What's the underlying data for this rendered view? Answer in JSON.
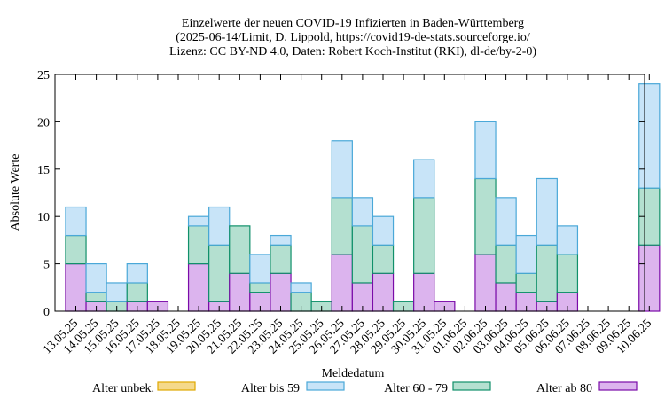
{
  "chart_data": {
    "type": "bar",
    "stacked": true,
    "title": [
      "Einzelwerte der neuen COVID-19 Infizierten in Baden-Württemberg",
      "(2025-06-14/Limit, D. Lippold, https://covid19-de-stats.sourceforge.io/",
      "Lizenz: CC BY-ND 4.0, Daten: Robert Koch-Institut (RKI), dl-de/by-2-0)"
    ],
    "xlabel": "Meldedatum",
    "ylabel": "Absolute Werte",
    "ylim": [
      0,
      25
    ],
    "yticks": [
      0,
      5,
      10,
      15,
      20,
      25
    ],
    "categories": [
      "13.05.25",
      "14.05.25",
      "15.05.25",
      "16.05.25",
      "17.05.25",
      "18.05.25",
      "19.05.25",
      "20.05.25",
      "21.05.25",
      "22.05.25",
      "23.05.25",
      "24.05.25",
      "25.05.25",
      "26.05.25",
      "27.05.25",
      "28.05.25",
      "29.05.25",
      "30.05.25",
      "31.05.25",
      "01.06.25",
      "02.06.25",
      "03.06.25",
      "04.06.25",
      "05.06.25",
      "06.06.25",
      "07.06.25",
      "08.06.25",
      "09.06.25",
      "10.06.25"
    ],
    "series": [
      {
        "name": "Alter unbek.",
        "color": "#f5d98b",
        "edge": "#e0a800",
        "values": [
          0,
          0,
          0,
          0,
          0,
          0,
          0,
          0,
          0,
          0,
          0,
          0,
          0,
          0,
          0,
          0,
          0,
          0,
          0,
          0,
          0,
          0,
          0,
          0,
          0,
          0,
          0,
          0,
          0
        ]
      },
      {
        "name": "Alter ab 80",
        "color": "#dcb4ee",
        "edge": "#7a0ba8",
        "values": [
          5,
          1,
          0,
          1,
          1,
          0,
          5,
          1,
          4,
          2,
          4,
          0,
          0,
          6,
          3,
          4,
          0,
          4,
          1,
          0,
          6,
          3,
          2,
          1,
          2,
          0,
          0,
          0,
          7
        ]
      },
      {
        "name": "Alter 60 - 79",
        "color": "#b4e0d0",
        "edge": "#10906a",
        "values": [
          3,
          1,
          1,
          2,
          0,
          0,
          4,
          6,
          5,
          1,
          3,
          2,
          1,
          6,
          6,
          3,
          1,
          8,
          0,
          0,
          8,
          4,
          2,
          6,
          4,
          0,
          0,
          0,
          6
        ]
      },
      {
        "name": "Alter bis 59",
        "color": "#c8e4f8",
        "edge": "#4aa8d8",
        "values": [
          3,
          3,
          2,
          2,
          0,
          0,
          1,
          4,
          0,
          3,
          1,
          1,
          0,
          6,
          3,
          3,
          0,
          4,
          0,
          0,
          6,
          5,
          4,
          7,
          3,
          0,
          0,
          0,
          11
        ]
      }
    ],
    "legend_order": [
      "Alter unbek.",
      "Alter bis 59",
      "Alter 60 - 79",
      "Alter ab 80"
    ],
    "legend_position": "bottom",
    "grid": false
  }
}
